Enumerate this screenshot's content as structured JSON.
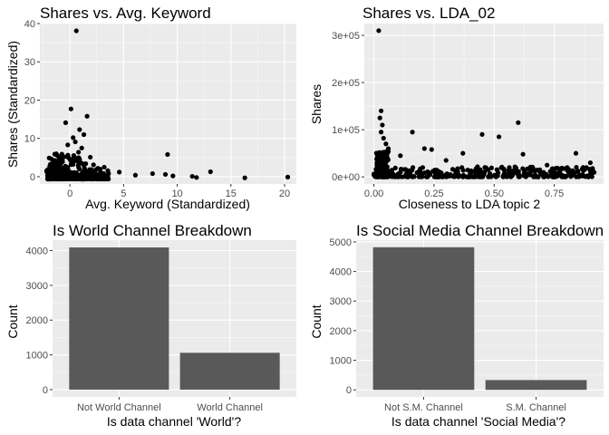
{
  "chart_data": [
    {
      "type": "scatter",
      "title": "Shares vs. Avg. Keyword",
      "xlabel": "Avg. Keyword (Standardized)",
      "ylabel": "Shares (Standardized)",
      "xlim": [
        -2.8,
        21.1
      ],
      "ylim": [
        -1.9,
        40
      ],
      "xticks": [
        0,
        5,
        10,
        15,
        20
      ],
      "xtick_labels": [
        "0",
        "5",
        "10",
        "15",
        "20"
      ],
      "yticks": [
        0,
        10,
        20,
        30,
        40
      ],
      "ytick_labels": [
        "0",
        "10",
        "20",
        "30",
        "40"
      ],
      "grid": true,
      "points": {
        "x": [
          0.6,
          1.6,
          -0.4,
          0.1,
          0.9,
          1.3,
          0.3,
          0.5,
          -0.2,
          1.1,
          0.8,
          9.1,
          13.1,
          3.2,
          2.6,
          4.6,
          2.2,
          0.4,
          1.9,
          6.1,
          7.7,
          8.9,
          9.6,
          11.4,
          11.8,
          16.3,
          20.3
        ],
        "y": [
          38.1,
          15.8,
          14.1,
          17.7,
          12.3,
          11.0,
          10.2,
          9.1,
          8.3,
          7.5,
          6.4,
          5.8,
          1.3,
          2.5,
          2.2,
          1.2,
          3.1,
          4.6,
          5.1,
          0.4,
          0.8,
          0.6,
          0.2,
          0.1,
          -0.2,
          -0.3,
          -0.1
        ]
      },
      "dense_cloud": {
        "x": [
          -1.8,
          3.6
        ],
        "y": [
          -0.6,
          6.0
        ]
      }
    },
    {
      "type": "scatter",
      "title": "Shares vs. LDA_02",
      "xlabel": "Closeness to LDA topic 2",
      "ylabel": "Shares",
      "xlim": [
        -0.04,
        0.955
      ],
      "ylim": [
        -15000,
        325000
      ],
      "xticks": [
        0,
        0.25,
        0.5,
        0.75
      ],
      "xtick_labels": [
        "0.00",
        "0.25",
        "0.50",
        "0.75"
      ],
      "yticks": [
        0,
        100000,
        200000,
        300000
      ],
      "ytick_labels": [
        "0e+00",
        "1e+05",
        "2e+05",
        "3e+05"
      ],
      "grid": true,
      "points": {
        "x": [
          0.02,
          0.03,
          0.025,
          0.03,
          0.04,
          0.035,
          0.6,
          0.45,
          0.52,
          0.16,
          0.21,
          0.24,
          0.37,
          0.62,
          0.84,
          0.87,
          0.9,
          0.72,
          0.05,
          0.06,
          0.3,
          0.78,
          0.69,
          0.11
        ],
        "y": [
          310000,
          140000,
          125000,
          95000,
          82000,
          110000,
          115000,
          90000,
          85000,
          95000,
          60000,
          58000,
          50000,
          48000,
          50000,
          20000,
          30000,
          25000,
          70000,
          60000,
          35000,
          18000,
          15000,
          45000
        ]
      },
      "dense_cloud": {
        "x": [
          0.0,
          0.92
        ],
        "y": [
          0,
          22000
        ]
      }
    },
    {
      "type": "bar",
      "title": "Is World Channel Breakdown",
      "xlabel": "Is data channel 'World'?",
      "ylabel": "Count",
      "categories": [
        "Not World Channel",
        "World Channel"
      ],
      "values": [
        4090,
        1060
      ],
      "ylim": [
        -210,
        4300
      ],
      "yticks": [
        0,
        1000,
        2000,
        3000,
        4000
      ],
      "ytick_labels": [
        "0",
        "1000",
        "2000",
        "3000",
        "4000"
      ],
      "grid": true,
      "bar_color": "#595959"
    },
    {
      "type": "bar",
      "title": "Is Social Media Channel Breakdown",
      "xlabel": "Is data channel 'Social Media'?",
      "ylabel": "Count",
      "categories": [
        "Not S.M. Channel",
        "S.M. Channel"
      ],
      "values": [
        4820,
        330
      ],
      "ylim": [
        -240,
        5060
      ],
      "yticks": [
        0,
        1000,
        2000,
        3000,
        4000,
        5000
      ],
      "ytick_labels": [
        "0",
        "1000",
        "2000",
        "3000",
        "4000",
        "5000"
      ],
      "grid": true,
      "bar_color": "#595959"
    }
  ]
}
